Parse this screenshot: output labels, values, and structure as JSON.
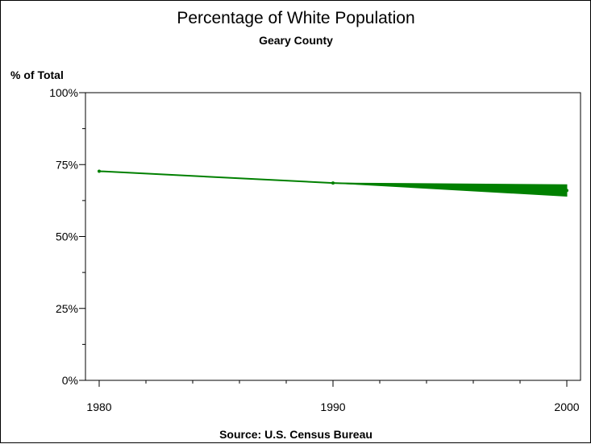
{
  "chart_data": {
    "type": "line",
    "title": "Percentage of White Population",
    "subtitle": "Geary County",
    "ylabel": "% of Total",
    "xlabel": "",
    "footnote": "Source: U.S. Census Bureau",
    "x": [
      1980,
      1990,
      2000
    ],
    "xlim": [
      1980,
      2000
    ],
    "ylim": [
      0,
      100
    ],
    "x_ticks": [
      "1980",
      "1990",
      "2000"
    ],
    "y_ticks": [
      "0%",
      "25%",
      "50%",
      "75%",
      "100%"
    ],
    "series": [
      {
        "values": [
          72.7,
          68.6,
          66.0
        ],
        "band_2000": [
          64.0,
          68.0
        ],
        "color": "#008000"
      }
    ],
    "grid": false,
    "legend": "none"
  }
}
